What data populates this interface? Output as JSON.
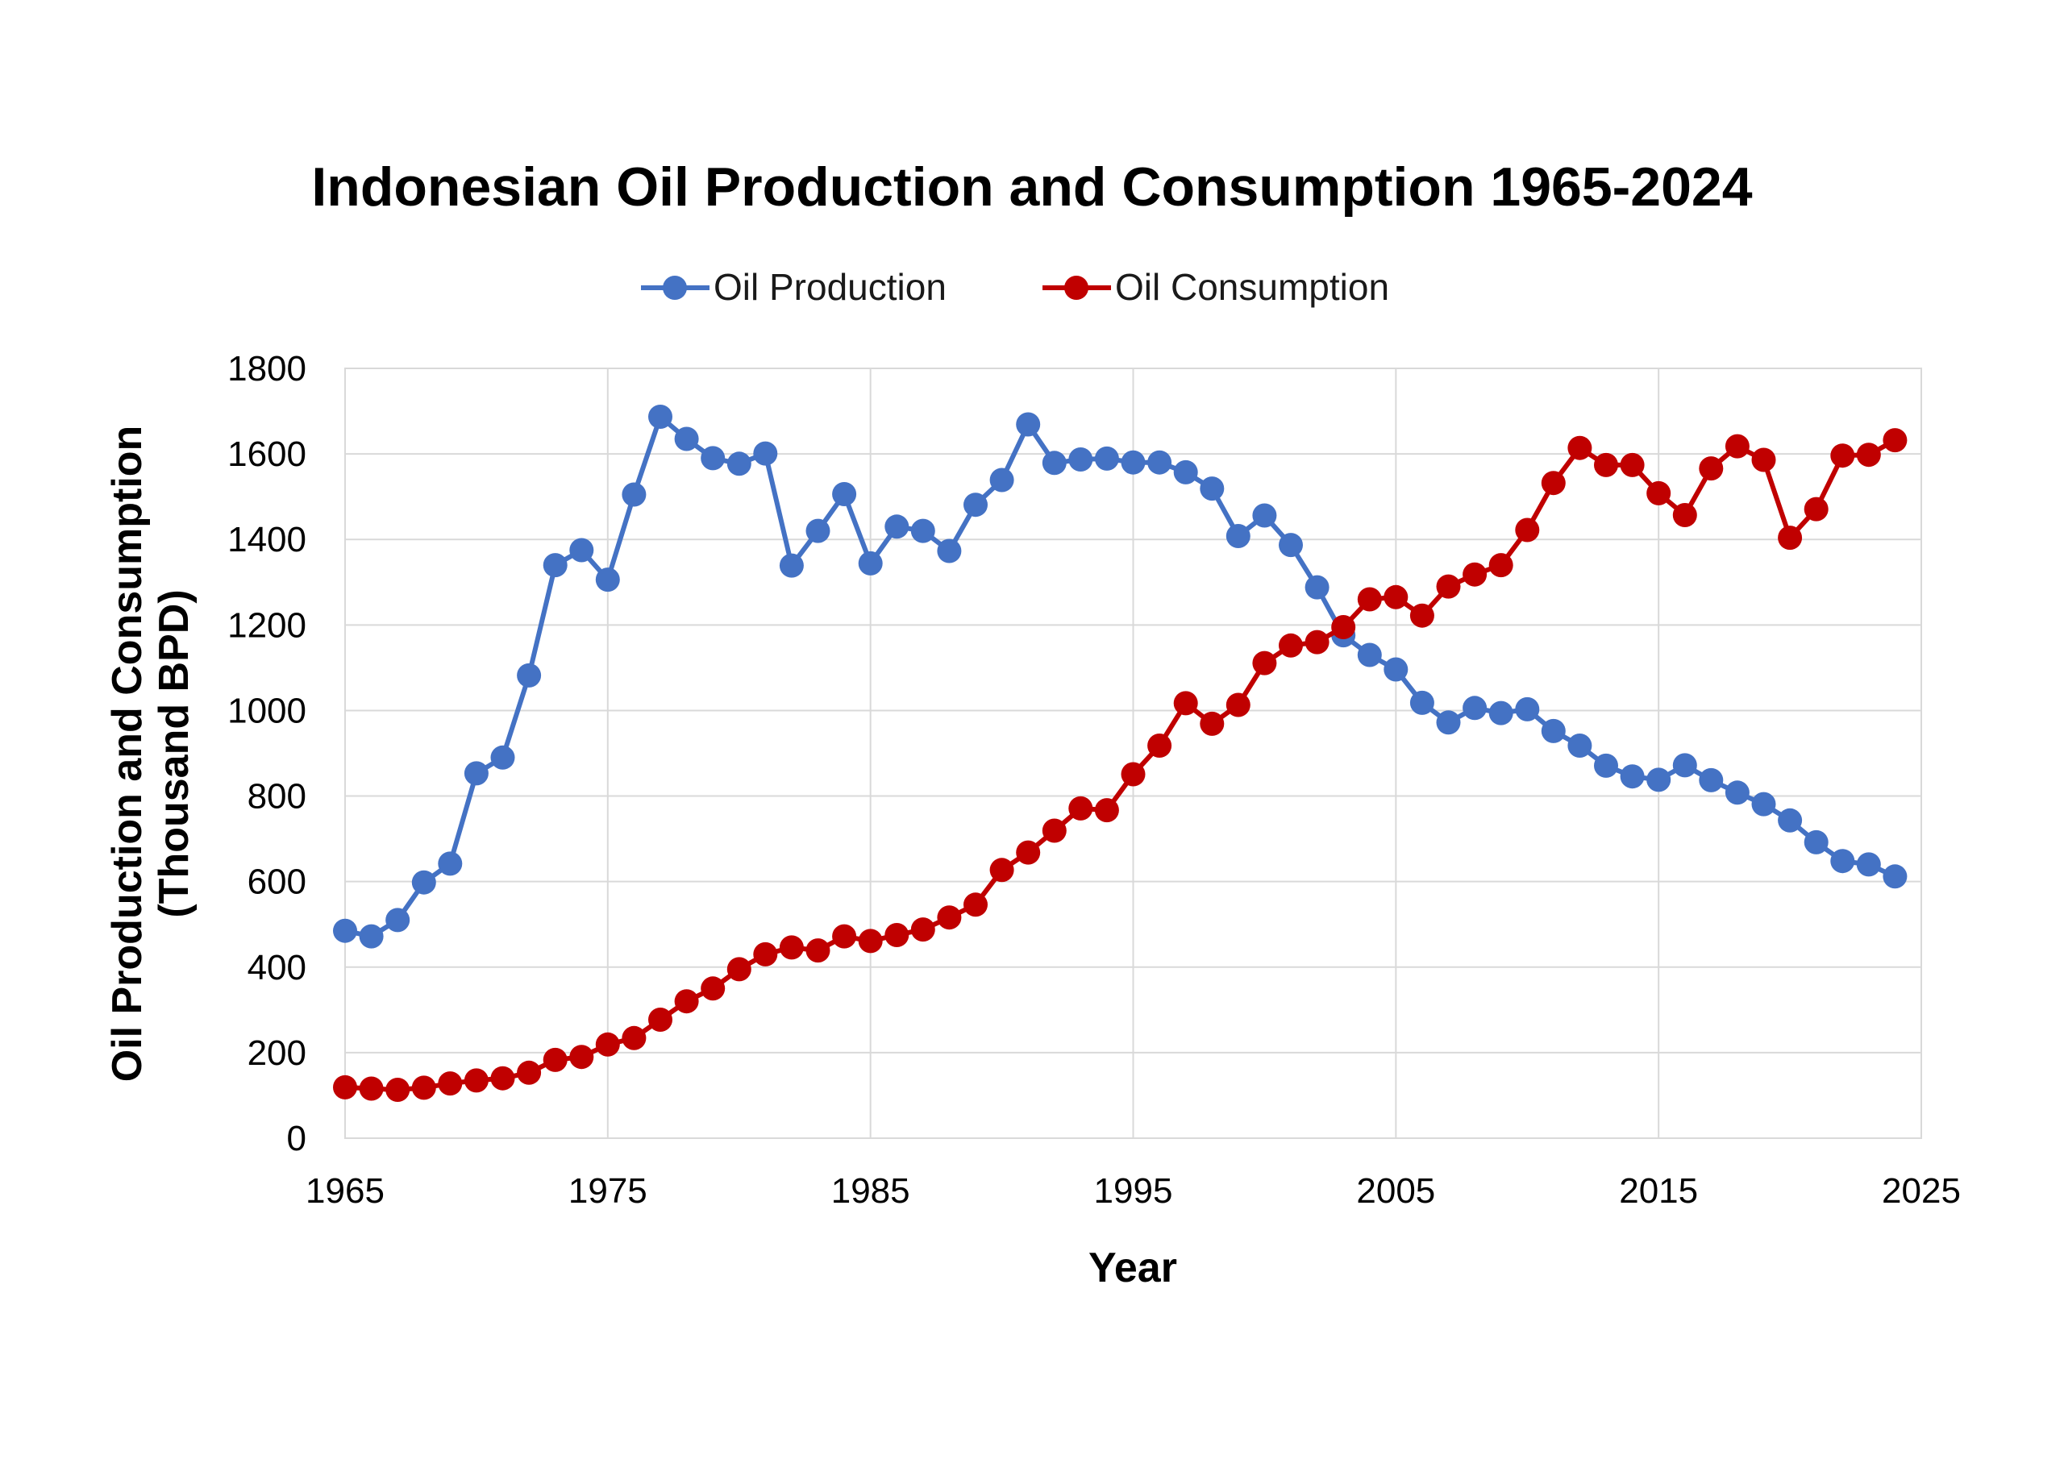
{
  "chart_data": {
    "type": "line",
    "title": "Indonesian Oil Production and Consumption 1965-2024",
    "xlabel": "Year",
    "ylabel_lines": [
      "Oil Production and Consumption",
      "(Thousand BPD)"
    ],
    "xlim": [
      1965,
      2025
    ],
    "ylim": [
      0,
      1800
    ],
    "xticks": [
      1965,
      1975,
      1985,
      1995,
      2005,
      2015,
      2025
    ],
    "yticks": [
      0,
      200,
      400,
      600,
      800,
      1000,
      1200,
      1400,
      1600,
      1800
    ],
    "grid": true,
    "legend_position": "top-center",
    "x": [
      1965,
      1966,
      1967,
      1968,
      1969,
      1970,
      1971,
      1972,
      1973,
      1974,
      1975,
      1976,
      1977,
      1978,
      1979,
      1980,
      1981,
      1982,
      1983,
      1984,
      1985,
      1986,
      1987,
      1988,
      1989,
      1990,
      1991,
      1992,
      1993,
      1994,
      1995,
      1996,
      1997,
      1998,
      1999,
      2000,
      2001,
      2002,
      2003,
      2004,
      2005,
      2006,
      2007,
      2008,
      2009,
      2010,
      2011,
      2012,
      2013,
      2014,
      2015,
      2016,
      2017,
      2018,
      2019,
      2020,
      2021,
      2022,
      2023,
      2024
    ],
    "series": [
      {
        "name": "Oil Production",
        "color": "#4472C4",
        "values": [
          485,
          472,
          510,
          598,
          642,
          853,
          890,
          1082,
          1340,
          1375,
          1306,
          1505,
          1687,
          1635,
          1590,
          1577,
          1601,
          1339,
          1420,
          1506,
          1344,
          1430,
          1420,
          1373,
          1481,
          1539,
          1669,
          1579,
          1587,
          1589,
          1580,
          1580,
          1557,
          1519,
          1408,
          1456,
          1387,
          1288,
          1176,
          1130,
          1096,
          1018,
          972,
          1006,
          994,
          1003,
          952,
          918,
          871,
          846,
          838,
          872,
          837,
          808,
          781,
          743,
          692,
          648,
          640,
          612
        ]
      },
      {
        "name": "Oil Consumption",
        "color": "#C00000",
        "values": [
          119,
          116,
          113,
          118,
          128,
          135,
          140,
          153,
          183,
          190,
          219,
          234,
          277,
          320,
          350,
          395,
          430,
          446,
          439,
          472,
          461,
          475,
          488,
          516,
          546,
          627,
          668,
          719,
          771,
          767,
          851,
          918,
          1017,
          969,
          1013,
          1111,
          1152,
          1160,
          1195,
          1260,
          1265,
          1222,
          1290,
          1318,
          1340,
          1422,
          1532,
          1614,
          1574,
          1574,
          1508,
          1457,
          1566,
          1618,
          1586,
          1404,
          1471,
          1596,
          1598,
          1632
        ]
      }
    ]
  }
}
